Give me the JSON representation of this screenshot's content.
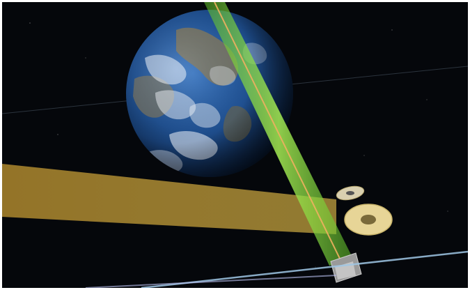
{
  "scene": {
    "description_visible_text": "",
    "colors": {
      "space": "#05070b",
      "ocean": "#1f4f8f",
      "ocean_dark": "#0a2347",
      "land": "#8a7a55",
      "cloud": "#f2f6fb",
      "solar_beam": "#c9a23a",
      "laser_beam": "#7fdc3a",
      "laser_core": "#f0b060",
      "orbit_line": "#9fc7e6",
      "panel": "#e7d597",
      "satellite": "#b8b8b8"
    },
    "icons": {
      "earth": "earth-globe",
      "solar_collector": "solar-disc",
      "relay_satellite": "relay-satellite"
    }
  }
}
